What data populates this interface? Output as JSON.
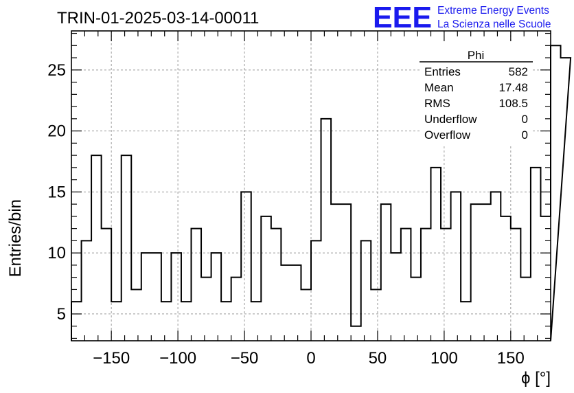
{
  "colors": {
    "histogram": "#000000",
    "grid": "#9a9a9a",
    "brand": "#1a1aee",
    "background": "#ffffff"
  },
  "header": {
    "run_title": "TRIN-01-2025-03-14-00011",
    "logo_text": "EEE",
    "brand_line1": "Extreme Energy Events",
    "brand_line2": "La Scienza nelle Scuole"
  },
  "stats": {
    "name": "Phi",
    "rows": [
      {
        "label": "Entries",
        "value": "582"
      },
      {
        "label": "Mean",
        "value": "17.48"
      },
      {
        "label": "RMS",
        "value": "108.5"
      },
      {
        "label": "Underflow",
        "value": "0"
      },
      {
        "label": "Overflow",
        "value": "0"
      }
    ]
  },
  "chart_data": {
    "type": "histogram",
    "title": "TRIN-01-2025-03-14-00011",
    "xlabel": "ϕ [°]",
    "ylabel": "Entries/bin",
    "xlim": [
      -180,
      180
    ],
    "ylim": [
      2.8,
      28.2
    ],
    "grid": true,
    "x_ticks": [
      -150,
      -100,
      -50,
      0,
      50,
      100,
      150
    ],
    "x_tick_labels": [
      "−150",
      "−100",
      "−50",
      "0",
      "50",
      "100",
      "150"
    ],
    "y_ticks": [
      5,
      10,
      15,
      20,
      25
    ],
    "y_tick_labels": [
      "5",
      "10",
      "15",
      "20",
      "25"
    ],
    "bin_width": 7.5,
    "bin_start": -180,
    "values": [
      6,
      11,
      18,
      12,
      6,
      18,
      7,
      10,
      10,
      6,
      10,
      6,
      12,
      8,
      10,
      6,
      8,
      15,
      6,
      13,
      12,
      9,
      9,
      7,
      11,
      21,
      14,
      14,
      4,
      11,
      7,
      14,
      10,
      12,
      8,
      12,
      17,
      12,
      15,
      6,
      14,
      14,
      15,
      13,
      12,
      8,
      17,
      13,
      27,
      26
    ]
  }
}
